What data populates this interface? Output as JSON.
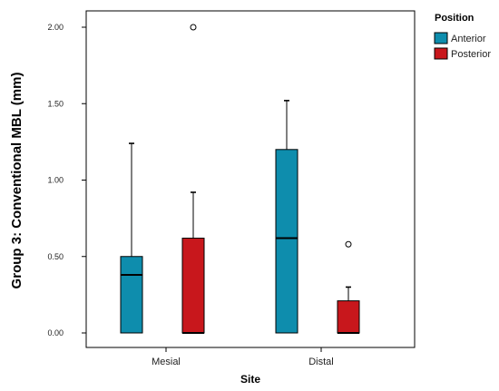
{
  "chart_data": {
    "type": "boxplot",
    "xlabel": "Site",
    "ylabel": "Group 3: Conventional MBL (mm)",
    "categories": [
      "Mesial",
      "Distal"
    ],
    "ylim": [
      0,
      2.2
    ],
    "y_ticks": [
      0,
      0.5,
      1,
      1.5,
      2
    ],
    "y_tick_labels": [
      "0.00",
      "0.50",
      "1.00",
      "1.50",
      "2.00"
    ],
    "legend": {
      "title": "Position",
      "placement": "top-right-outside",
      "entries": [
        "Anterior",
        "Posterior"
      ]
    },
    "series": [
      {
        "name": "Anterior",
        "color": "#0e8dad",
        "boxes": [
          {
            "category": "Mesial",
            "min": 0.0,
            "q1": 0.0,
            "median": 0.38,
            "q3": 0.5,
            "max": 1.24,
            "outliers": []
          },
          {
            "category": "Distal",
            "min": 0.0,
            "q1": 0.0,
            "median": 0.62,
            "q3": 1.2,
            "max": 1.52,
            "outliers": []
          }
        ]
      },
      {
        "name": "Posterior",
        "color": "#c8171c",
        "boxes": [
          {
            "category": "Mesial",
            "min": 0.0,
            "q1": 0.0,
            "median": 0.0,
            "q3": 0.62,
            "max": 0.92,
            "outliers": [
              2.0
            ]
          },
          {
            "category": "Distal",
            "min": 0.0,
            "q1": 0.0,
            "median": 0.0,
            "q3": 0.21,
            "max": 0.3,
            "outliers": [
              0.58
            ]
          }
        ]
      }
    ]
  }
}
